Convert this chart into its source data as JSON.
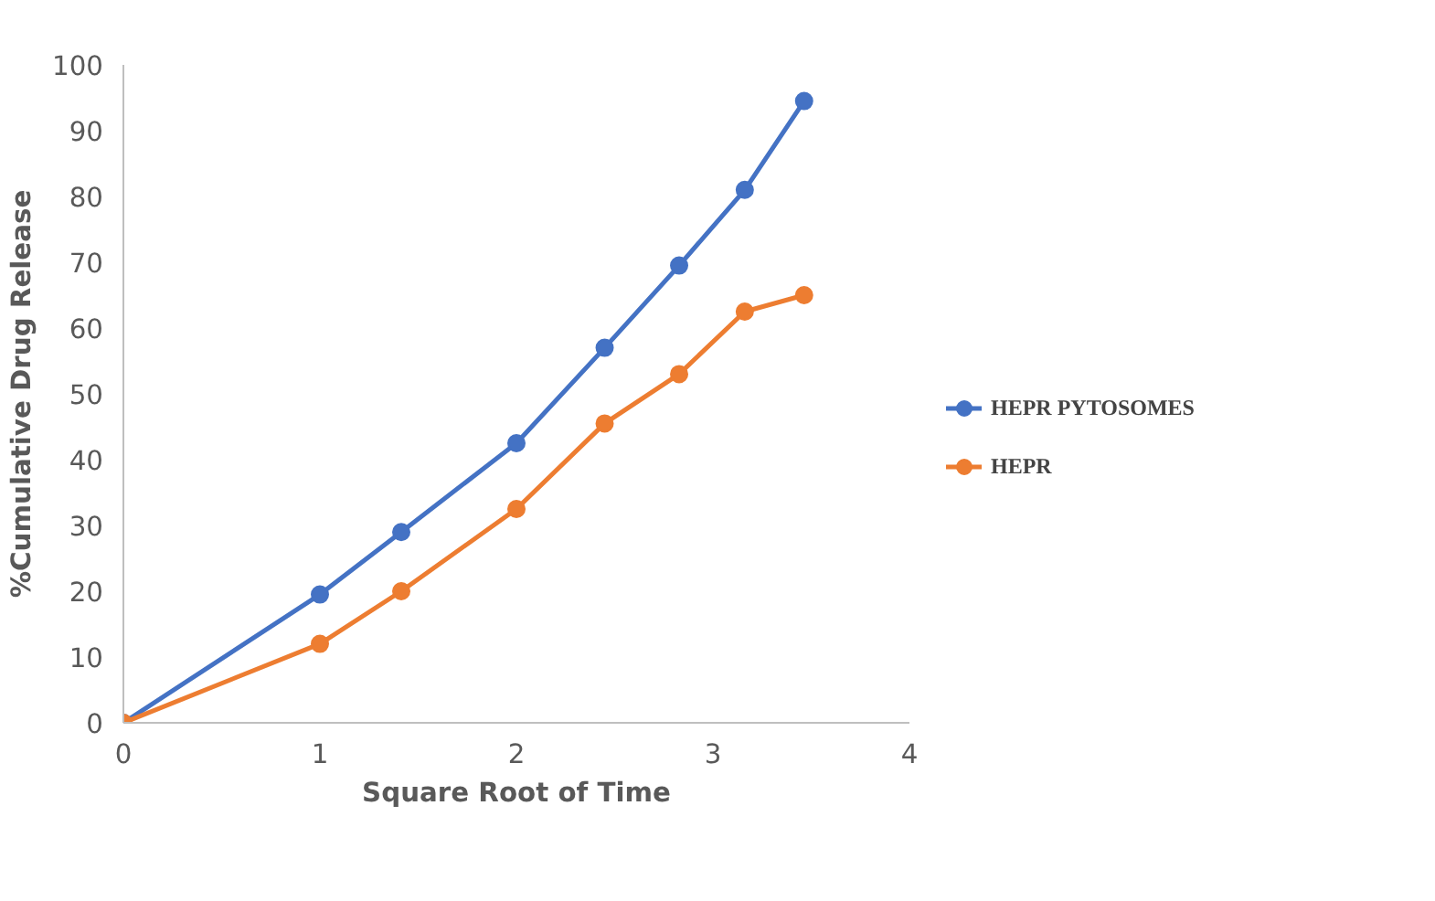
{
  "chart_data": {
    "type": "line",
    "xlabel": "Square Root of Time",
    "ylabel": "%Cumulative Drug Release",
    "x": [
      0,
      1,
      1.414,
      2,
      2.449,
      2.828,
      3.162,
      3.464
    ],
    "series": [
      {
        "name": "HEPR PYTOSOMES",
        "color": "#4472c4",
        "values": [
          0,
          19.5,
          29,
          42.5,
          57,
          69.5,
          81,
          94.5
        ]
      },
      {
        "name": "HEPR",
        "color": "#ed7d31",
        "values": [
          0,
          12,
          20,
          32.5,
          45.5,
          53,
          62.5,
          65
        ]
      }
    ],
    "xlim": [
      0,
      4
    ],
    "xticks": [
      0,
      1,
      2,
      3,
      4
    ],
    "ylim": [
      0,
      100
    ],
    "yticks": [
      0,
      10,
      20,
      30,
      40,
      50,
      60,
      70,
      80,
      90,
      100
    ],
    "grid": false,
    "legend": "right",
    "marker": "circle",
    "line_style": "solid"
  }
}
